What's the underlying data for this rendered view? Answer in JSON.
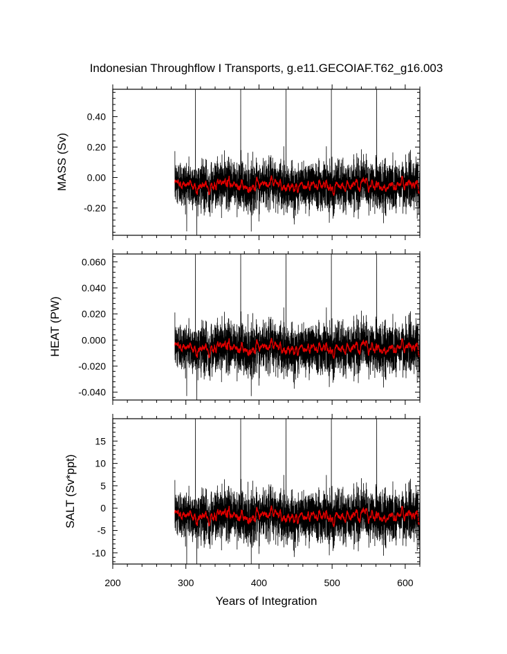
{
  "title": "Indonesian Throughflow I Transports, g.e11.GECOIAF.T62_g16.003",
  "colors": {
    "series_raw": "#000000",
    "series_smooth": "#e00000",
    "frame": "#000000"
  },
  "chart_data": [
    {
      "type": "line",
      "ylabel": "MASS (Sv)",
      "xlim": [
        200,
        620
      ],
      "ylim": [
        -0.38,
        0.58
      ],
      "yticks": [
        -0.2,
        0.0,
        0.2,
        0.4
      ],
      "ytick_labels": [
        "-0.20",
        "0.00",
        "0.20",
        "0.40"
      ],
      "series": [
        {
          "role": "raw",
          "x_start": 285,
          "x_end": 620,
          "mean": -0.05,
          "amplitude": 0.14,
          "spike_years": [
            313,
            375,
            437,
            499,
            561
          ],
          "spike_top": 0.58,
          "min": -0.38
        },
        {
          "role": "smooth",
          "x_start": 285,
          "x_end": 620,
          "mean": -0.05,
          "amplitude": 0.025
        }
      ]
    },
    {
      "type": "line",
      "ylabel": "HEAT (PW)",
      "xlim": [
        200,
        620
      ],
      "ylim": [
        -0.046,
        0.066
      ],
      "yticks": [
        -0.04,
        -0.02,
        0.0,
        0.02,
        0.04,
        0.06
      ],
      "ytick_labels": [
        "-0.040",
        "-0.020",
        "0.000",
        "0.020",
        "0.040",
        "0.060"
      ],
      "series": [
        {
          "role": "raw",
          "x_start": 285,
          "x_end": 620,
          "mean": -0.006,
          "amplitude": 0.017,
          "spike_years": [
            313,
            375,
            437,
            499,
            561
          ],
          "spike_top": 0.066,
          "min": -0.046
        },
        {
          "role": "smooth",
          "x_start": 285,
          "x_end": 620,
          "mean": -0.006,
          "amplitude": 0.003
        }
      ]
    },
    {
      "type": "line",
      "ylabel": "SALT (Sv*ppt)",
      "xlabel": "Years of Integration",
      "xlim": [
        200,
        620
      ],
      "ylim": [
        -12.5,
        20
      ],
      "yticks": [
        -10,
        -5,
        0,
        5,
        10,
        15
      ],
      "ytick_labels": [
        "-10",
        "-5",
        "0",
        "5",
        "10",
        "15"
      ],
      "xticks": [
        200,
        300,
        400,
        500,
        600
      ],
      "xtick_labels": [
        "200",
        "300",
        "400",
        "500",
        "600"
      ],
      "series": [
        {
          "role": "raw",
          "x_start": 285,
          "x_end": 620,
          "mean": -1.7,
          "amplitude": 5.0,
          "spike_years": [
            313,
            375,
            437,
            499,
            561
          ],
          "spike_top": 20,
          "min": -12.5
        },
        {
          "role": "smooth",
          "x_start": 285,
          "x_end": 620,
          "mean": -1.7,
          "amplitude": 0.9
        }
      ]
    }
  ]
}
